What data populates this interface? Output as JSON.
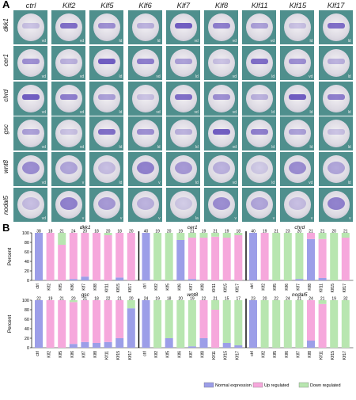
{
  "panelA": {
    "label": "A",
    "columns": [
      "ctrl",
      "Klf2",
      "Klf5",
      "Klf6",
      "Klf7",
      "Klf8",
      "Klf11",
      "Klf15",
      "Klf17"
    ],
    "rows": [
      {
        "name": "dkk1",
        "tags": [
          "vd",
          "vd",
          "ld",
          "ld",
          "vd",
          "vd",
          "vd",
          "ld",
          "ld"
        ]
      },
      {
        "name": "cer1",
        "tags": [
          "vd",
          "vd",
          "ld",
          "vd",
          "ld",
          "vd",
          "ld",
          "vd",
          "ld"
        ]
      },
      {
        "name": "chrd",
        "tags": [
          "vd",
          "vd",
          "ld",
          "vd",
          "vd",
          "vd",
          "ld",
          "ld",
          "ld"
        ]
      },
      {
        "name": "gsc",
        "tags": [
          "vd",
          "vd",
          "ld",
          "ld",
          "ld",
          "vd",
          "ld",
          "ld",
          "ld"
        ]
      },
      {
        "name": "wnt8",
        "tags": [
          "vd",
          "v",
          "ld",
          "v",
          "ld",
          "vd",
          "ld",
          "vd",
          "ld"
        ]
      },
      {
        "name": "nodal5",
        "tags": [
          "vd",
          "v",
          "v",
          "v",
          "la",
          "v",
          "v",
          "v",
          "v"
        ]
      }
    ],
    "colors": {
      "background": "#4f8f8d",
      "embryo": "#e8e6ea",
      "stain": "#5b44b8"
    }
  },
  "panelB": {
    "label": "B",
    "yaxis_label": "Percent",
    "colors": {
      "normal": "#9c9ee8",
      "up": "#f6a8dc",
      "down": "#b8e6b0"
    }
  },
  "chart_data": [
    {
      "type": "bar",
      "title": "dkk1",
      "ylabel": "Percent",
      "ylim": [
        0,
        100
      ],
      "categories": [
        "ctrl",
        "Klf2",
        "Klf5",
        "Klf6",
        "Klf7",
        "Klf8",
        "Klf11",
        "Klf15",
        "Klf17"
      ],
      "n": [
        "38",
        "18",
        "21",
        "24",
        "20",
        "18",
        "20",
        "18",
        "20"
      ],
      "series": [
        {
          "name": "Normal expression",
          "values": [
            100,
            0,
            0,
            3,
            8,
            0,
            0,
            6,
            0
          ]
        },
        {
          "name": "Up regulated",
          "values": [
            0,
            100,
            75,
            97,
            92,
            100,
            95,
            94,
            100
          ]
        },
        {
          "name": "Down regulated",
          "values": [
            0,
            0,
            25,
            0,
            0,
            0,
            5,
            0,
            0
          ]
        }
      ]
    },
    {
      "type": "bar",
      "title": "cer1",
      "ylabel": "Percent",
      "ylim": [
        0,
        100
      ],
      "categories": [
        "ctrl",
        "Klf2",
        "Klf5",
        "Klf6",
        "Klf7",
        "Klf8",
        "Klf11",
        "Klf15",
        "Klf17"
      ],
      "n": [
        "40",
        "19",
        "20",
        "19",
        "21",
        "19",
        "21",
        "19",
        "18"
      ],
      "series": [
        {
          "name": "Normal expression",
          "values": [
            100,
            0,
            0,
            85,
            3,
            0,
            0,
            0,
            0
          ]
        },
        {
          "name": "Up regulated",
          "values": [
            0,
            0,
            0,
            0,
            87,
            90,
            92,
            90,
            95
          ]
        },
        {
          "name": "Down regulated",
          "values": [
            0,
            100,
            100,
            15,
            10,
            10,
            8,
            10,
            5
          ]
        }
      ]
    },
    {
      "type": "bar",
      "title": "chrd",
      "ylabel": "Percent",
      "ylim": [
        0,
        100
      ],
      "categories": [
        "ctrl",
        "Klf2",
        "Klf5",
        "Klf6",
        "Klf7",
        "Klf8",
        "Klf11",
        "Klf15",
        "Klf17"
      ],
      "n": [
        "40",
        "19",
        "21",
        "23",
        "20",
        "21",
        "21",
        "20",
        "21"
      ],
      "series": [
        {
          "name": "Normal expression",
          "values": [
            100,
            0,
            0,
            0,
            3,
            87,
            5,
            0,
            0
          ]
        },
        {
          "name": "Up regulated",
          "values": [
            0,
            100,
            0,
            0,
            0,
            13,
            82,
            0,
            90
          ]
        },
        {
          "name": "Down regulated",
          "values": [
            0,
            0,
            100,
            100,
            97,
            0,
            13,
            100,
            10
          ]
        }
      ]
    },
    {
      "type": "bar",
      "title": "gsc",
      "ylabel": "Percent",
      "ylim": [
        0,
        100
      ],
      "categories": [
        "ctrl",
        "Klf2",
        "Klf5",
        "Klf6",
        "Klf7",
        "Klf8",
        "Klf11",
        "Klf15",
        "Klf17"
      ],
      "n": [
        "22",
        "19",
        "21",
        "20",
        "21",
        "18",
        "22",
        "21",
        "20"
      ],
      "series": [
        {
          "name": "Normal expression",
          "values": [
            100,
            0,
            0,
            8,
            12,
            10,
            12,
            20,
            83
          ]
        },
        {
          "name": "Up regulated",
          "values": [
            0,
            100,
            100,
            88,
            88,
            90,
            88,
            80,
            0
          ]
        },
        {
          "name": "Down regulated",
          "values": [
            0,
            0,
            0,
            4,
            0,
            0,
            0,
            0,
            17
          ]
        }
      ]
    },
    {
      "type": "bar",
      "title": "wnt8",
      "ylabel": "Percent",
      "ylim": [
        0,
        100
      ],
      "categories": [
        "ctrl",
        "Klf2",
        "Klf5",
        "Klf6",
        "Klf7",
        "Klf8",
        "Klf11",
        "Klf15",
        "Klf17"
      ],
      "n": [
        "24",
        "19",
        "18",
        "20",
        "19",
        "22",
        "21",
        "15",
        "17"
      ],
      "series": [
        {
          "name": "Normal expression",
          "values": [
            100,
            0,
            20,
            0,
            3,
            20,
            0,
            10,
            5
          ]
        },
        {
          "name": "Up regulated",
          "values": [
            0,
            0,
            0,
            0,
            0,
            80,
            80,
            0,
            0
          ]
        },
        {
          "name": "Down regulated",
          "values": [
            0,
            100,
            80,
            100,
            97,
            0,
            20,
            90,
            95
          ]
        }
      ]
    },
    {
      "type": "bar",
      "title": "nodal5",
      "ylabel": "Percent",
      "ylim": [
        0,
        100
      ],
      "categories": [
        "ctrl",
        "Klf2",
        "Klf5",
        "Klf6",
        "Klf7",
        "Klf8",
        "Klf11",
        "Klf15",
        "Klf17"
      ],
      "n": [
        "23",
        "20",
        "22",
        "24",
        "21",
        "24",
        "21",
        "19",
        "32"
      ],
      "series": [
        {
          "name": "Normal expression",
          "values": [
            100,
            0,
            0,
            0,
            0,
            15,
            0,
            0,
            0
          ]
        },
        {
          "name": "Up regulated",
          "values": [
            0,
            0,
            0,
            0,
            0,
            85,
            92,
            0,
            0
          ]
        },
        {
          "name": "Down regulated",
          "values": [
            0,
            100,
            100,
            100,
            100,
            0,
            8,
            100,
            100
          ]
        }
      ]
    }
  ],
  "legend": [
    "Normal expression",
    "Up regulated",
    "Down regulated"
  ]
}
